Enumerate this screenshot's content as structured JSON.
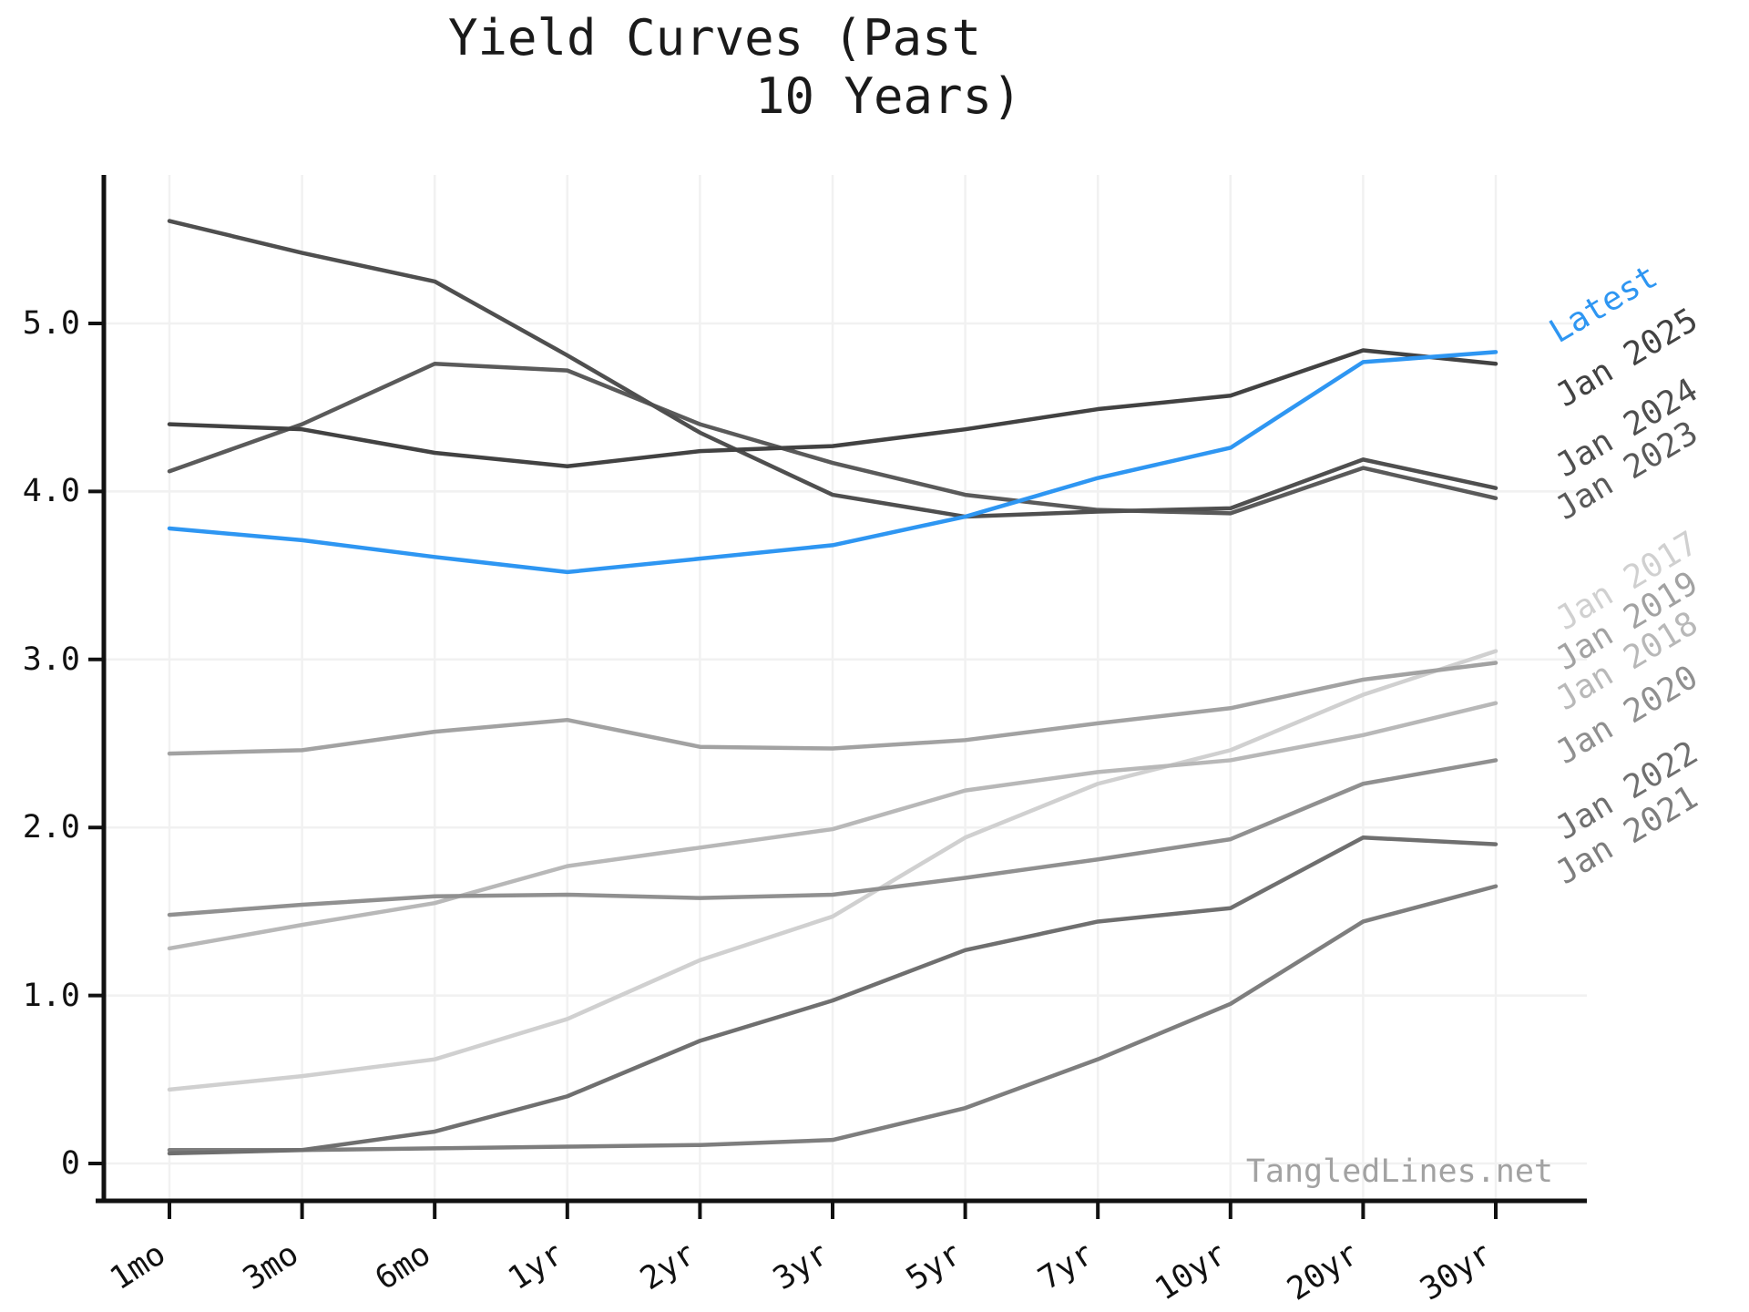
{
  "page": {
    "title_lines": [
      "Yield Curves (Past",
      "10 Years)"
    ],
    "watermark": "TangledLines.net"
  },
  "chart_data": {
    "type": "line",
    "title": "Yield Curves (Past 10 Years)",
    "xlabel": "",
    "ylabel": "",
    "categories": [
      "1mo",
      "3mo",
      "6mo",
      "1yr",
      "2yr",
      "3yr",
      "5yr",
      "7yr",
      "10yr",
      "20yr",
      "30yr"
    ],
    "y_tick_labels": [
      "0",
      "1.0",
      "2.0",
      "3.0",
      "4.0",
      "5.0"
    ],
    "y_tick_values": [
      0,
      1,
      2,
      3,
      4,
      5
    ],
    "ylim": [
      -0.22,
      5.88
    ],
    "grid": true,
    "legend_position": "labels-at-right-edge",
    "colors": {
      "accent_blue": "#2e96f2",
      "gridline": "#f1f1f1",
      "spine": "#111111",
      "watermark_gray": "#a2a2a2"
    },
    "series": [
      {
        "name": "Latest",
        "color": "#2e96f2",
        "values": [
          3.78,
          3.71,
          3.61,
          3.52,
          3.6,
          3.68,
          3.85,
          4.08,
          4.26,
          4.77,
          4.83
        ]
      },
      {
        "name": "Jan 2025",
        "color": "#424242",
        "values": [
          4.4,
          4.37,
          4.23,
          4.15,
          4.24,
          4.27,
          4.37,
          4.49,
          4.57,
          4.84,
          4.76
        ]
      },
      {
        "name": "Jan 2024",
        "color": "#4f4f4f",
        "values": [
          5.61,
          5.42,
          5.25,
          4.81,
          4.35,
          3.98,
          3.85,
          3.88,
          3.9,
          4.19,
          4.02
        ]
      },
      {
        "name": "Jan 2023",
        "color": "#5a5a5a",
        "values": [
          4.12,
          4.4,
          4.76,
          4.72,
          4.4,
          4.17,
          3.98,
          3.89,
          3.87,
          4.14,
          3.96
        ]
      },
      {
        "name": "Jan 2022",
        "color": "#6f6f6f",
        "values": [
          0.06,
          0.08,
          0.19,
          0.4,
          0.73,
          0.97,
          1.27,
          1.44,
          1.52,
          1.94,
          1.9
        ]
      },
      {
        "name": "Jan 2021",
        "color": "#7e7e7e",
        "values": [
          0.08,
          0.08,
          0.09,
          0.1,
          0.11,
          0.14,
          0.33,
          0.62,
          0.95,
          1.44,
          1.65
        ]
      },
      {
        "name": "Jan 2020",
        "color": "#909090",
        "values": [
          1.48,
          1.54,
          1.59,
          1.6,
          1.58,
          1.6,
          1.7,
          1.81,
          1.93,
          2.26,
          2.4
        ]
      },
      {
        "name": "Jan 2019",
        "color": "#a2a2a2",
        "values": [
          2.44,
          2.46,
          2.57,
          2.64,
          2.48,
          2.47,
          2.52,
          2.62,
          2.71,
          2.88,
          2.98
        ]
      },
      {
        "name": "Jan 2018",
        "color": "#b8b8b8",
        "values": [
          1.28,
          1.42,
          1.55,
          1.77,
          1.88,
          1.99,
          2.22,
          2.33,
          2.4,
          2.55,
          2.74
        ]
      },
      {
        "name": "Jan 2017",
        "color": "#d0d0d0",
        "values": [
          0.44,
          0.52,
          0.62,
          0.86,
          1.21,
          1.47,
          1.94,
          2.26,
          2.46,
          2.79,
          3.05
        ]
      }
    ]
  }
}
